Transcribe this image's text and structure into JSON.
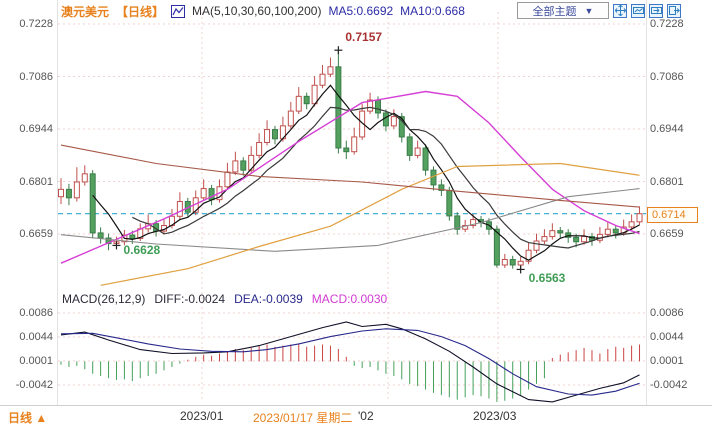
{
  "header": {
    "symbol": "澳元美元",
    "period": "【日线】",
    "ma_settings": "MA(5,10,30,60,100,200)",
    "ma5": "MA5:0.6692",
    "ma10": "MA10:0.668",
    "theme_selector": "全部主题",
    "dropdown_arrow": "▼"
  },
  "macd_header": {
    "label": "MACD(26,12,9)",
    "diff": "DIFF:-0.0024",
    "dea": "DEA:-0.0039",
    "macd": "MACD:0.0030"
  },
  "annotations": {
    "high": "0.7157",
    "low_left": "0.6628",
    "low_right": "0.6563",
    "last_price": "0.6714"
  },
  "time_axis": {
    "jan_label": "2023/01",
    "selected_date": "2023/01/17 星期二",
    "feb_label": "'02",
    "mar_label": "2023/03"
  },
  "status_bar": {
    "period": "日线",
    "trend_arrow": "▲"
  },
  "chart_data": {
    "type": "candlestick",
    "title": "澳元美元 日线 AUD/USD daily with MA overlays and MACD",
    "price_axis": {
      "labels": [
        "0.7228",
        "0.7086",
        "0.6944",
        "0.6801",
        "0.6659"
      ],
      "ticks": [
        0.7228,
        0.7086,
        0.6944,
        0.6801,
        0.6659
      ]
    },
    "macd_axis": {
      "labels": [
        "0.0086",
        "0.0044",
        "0.0001",
        "-0.0042"
      ],
      "ticks": [
        0.0086,
        0.0044,
        0.0001,
        -0.0042
      ]
    },
    "last_price": 0.6714,
    "colors": {
      "up": "#c0504d",
      "down_stroke": "#3a7d49",
      "down_fill": "#53a05f",
      "grid": "#f0d2d2",
      "frame": "#e3e3e3",
      "last_line": "#2ea8cc",
      "ma5": "#111111",
      "ma10": "#3a3a3a",
      "hist_up": "#cc4444",
      "hist_down": "#44a05a",
      "diff": "#101028",
      "dea": "#28288c",
      "marker": "#222222"
    },
    "candles": [
      [
        0.676,
        0.681,
        0.674,
        0.678
      ],
      [
        0.678,
        0.6795,
        0.6737,
        0.6757
      ],
      [
        0.6757,
        0.684,
        0.6747,
        0.68
      ],
      [
        0.68,
        0.6845,
        0.679,
        0.6822
      ],
      [
        0.6822,
        0.6832,
        0.6647,
        0.6662
      ],
      [
        0.6662,
        0.6677,
        0.6633,
        0.6648
      ],
      [
        0.6648,
        0.666,
        0.6615,
        0.6633
      ],
      [
        0.6633,
        0.6652,
        0.6628,
        0.6638
      ],
      [
        0.6638,
        0.667,
        0.6628,
        0.6656
      ],
      [
        0.6656,
        0.6668,
        0.6632,
        0.6647
      ],
      [
        0.6647,
        0.6688,
        0.664,
        0.6673
      ],
      [
        0.6673,
        0.6712,
        0.6663,
        0.6687
      ],
      [
        0.6687,
        0.6697,
        0.6652,
        0.6667
      ],
      [
        0.6667,
        0.6698,
        0.6658,
        0.6682
      ],
      [
        0.6682,
        0.6727,
        0.6674,
        0.6707
      ],
      [
        0.6707,
        0.6772,
        0.6699,
        0.6747
      ],
      [
        0.6747,
        0.6757,
        0.6703,
        0.6718
      ],
      [
        0.6718,
        0.6777,
        0.671,
        0.6757
      ],
      [
        0.6757,
        0.6807,
        0.6749,
        0.6782
      ],
      [
        0.6782,
        0.6792,
        0.6737,
        0.6752
      ],
      [
        0.6752,
        0.6807,
        0.6744,
        0.6787
      ],
      [
        0.6787,
        0.6852,
        0.6779,
        0.6827
      ],
      [
        0.6827,
        0.6882,
        0.6819,
        0.6857
      ],
      [
        0.6857,
        0.6867,
        0.6817,
        0.6832
      ],
      [
        0.6832,
        0.6897,
        0.6824,
        0.6872
      ],
      [
        0.6872,
        0.6932,
        0.6864,
        0.6907
      ],
      [
        0.6907,
        0.6967,
        0.6899,
        0.6942
      ],
      [
        0.6942,
        0.6952,
        0.6902,
        0.6917
      ],
      [
        0.6917,
        0.6977,
        0.6909,
        0.6952
      ],
      [
        0.6952,
        0.7017,
        0.6944,
        0.6992
      ],
      [
        0.6992,
        0.7057,
        0.6984,
        0.7032
      ],
      [
        0.7032,
        0.7042,
        0.6997,
        0.7012
      ],
      [
        0.7012,
        0.7087,
        0.7004,
        0.7062
      ],
      [
        0.7062,
        0.7117,
        0.7054,
        0.7092
      ],
      [
        0.7092,
        0.7137,
        0.7084,
        0.7112
      ],
      [
        0.7112,
        0.7157,
        0.6877,
        0.6892
      ],
      [
        0.6892,
        0.6912,
        0.6862,
        0.6882
      ],
      [
        0.6882,
        0.6947,
        0.6874,
        0.6922
      ],
      [
        0.6922,
        0.7012,
        0.6914,
        0.6992
      ],
      [
        0.6992,
        0.7042,
        0.6984,
        0.7022
      ],
      [
        0.7022,
        0.7032,
        0.6972,
        0.6987
      ],
      [
        0.6987,
        0.6997,
        0.6937,
        0.6952
      ],
      [
        0.6952,
        0.6997,
        0.6944,
        0.6977
      ],
      [
        0.6977,
        0.6987,
        0.6907,
        0.6922
      ],
      [
        0.6922,
        0.6932,
        0.6857,
        0.6872
      ],
      [
        0.6872,
        0.6912,
        0.6864,
        0.6892
      ],
      [
        0.6892,
        0.6902,
        0.6817,
        0.6832
      ],
      [
        0.6832,
        0.6842,
        0.6777,
        0.6792
      ],
      [
        0.6792,
        0.6807,
        0.6762,
        0.6777
      ],
      [
        0.6777,
        0.6787,
        0.6695,
        0.6708
      ],
      [
        0.6708,
        0.6718,
        0.6657,
        0.6672
      ],
      [
        0.6672,
        0.6697,
        0.6664,
        0.6682
      ],
      [
        0.6682,
        0.6713,
        0.6674,
        0.6698
      ],
      [
        0.6698,
        0.6708,
        0.6677,
        0.6692
      ],
      [
        0.6692,
        0.6702,
        0.6657,
        0.6672
      ],
      [
        0.6672,
        0.6682,
        0.6568,
        0.6575
      ],
      [
        0.6575,
        0.6605,
        0.6567,
        0.659
      ],
      [
        0.659,
        0.66,
        0.6565,
        0.6575
      ],
      [
        0.6575,
        0.6597,
        0.6563,
        0.6585
      ],
      [
        0.6585,
        0.6635,
        0.6577,
        0.6615
      ],
      [
        0.6615,
        0.666,
        0.6607,
        0.664
      ],
      [
        0.664,
        0.6672,
        0.6632,
        0.6652
      ],
      [
        0.6652,
        0.6688,
        0.6644,
        0.6668
      ],
      [
        0.6668,
        0.6678,
        0.6647,
        0.6662
      ],
      [
        0.6662,
        0.6672,
        0.6635,
        0.665
      ],
      [
        0.665,
        0.666,
        0.6623,
        0.6638
      ],
      [
        0.6638,
        0.6672,
        0.663,
        0.6652
      ],
      [
        0.6652,
        0.6662,
        0.6627,
        0.6642
      ],
      [
        0.6642,
        0.6678,
        0.6634,
        0.6658
      ],
      [
        0.6658,
        0.6692,
        0.665,
        0.6672
      ],
      [
        0.6672,
        0.6682,
        0.6647,
        0.6662
      ],
      [
        0.6662,
        0.6698,
        0.6654,
        0.6678
      ],
      [
        0.6678,
        0.6712,
        0.667,
        0.6692
      ],
      [
        0.6692,
        0.6734,
        0.6684,
        0.6714
      ]
    ],
    "markers": [
      {
        "idx": 35,
        "price": 0.7157,
        "kind": "high"
      },
      {
        "idx": 7,
        "price": 0.6628,
        "kind": "low"
      },
      {
        "idx": 58,
        "price": 0.6563,
        "kind": "low"
      }
    ],
    "ma_overlays": [
      {
        "name": "MA30",
        "color": "#d63fd6",
        "width": 1.4,
        "points": [
          [
            0,
            0.658
          ],
          [
            13,
            0.67
          ],
          [
            21,
            0.678
          ],
          [
            30,
            0.691
          ],
          [
            38,
            0.7015
          ],
          [
            46,
            0.7045
          ],
          [
            50,
            0.7032
          ],
          [
            54,
            0.696
          ],
          [
            58,
            0.6868
          ],
          [
            62,
            0.678
          ],
          [
            66,
            0.6722
          ],
          [
            70,
            0.6682
          ],
          [
            73,
            0.666
          ]
        ]
      },
      {
        "name": "MA60",
        "color": "#8a8a8a",
        "width": 1.1,
        "points": [
          [
            0,
            0.6657
          ],
          [
            12,
            0.6632
          ],
          [
            27,
            0.6612
          ],
          [
            40,
            0.6628
          ],
          [
            53,
            0.669
          ],
          [
            64,
            0.676
          ],
          [
            73,
            0.6782
          ]
        ]
      },
      {
        "name": "MA100",
        "color": "#e0a040",
        "width": 1.2,
        "points": [
          [
            5,
            0.652
          ],
          [
            16,
            0.6565
          ],
          [
            25,
            0.6625
          ],
          [
            34,
            0.668
          ],
          [
            43,
            0.678
          ],
          [
            50,
            0.6842
          ],
          [
            63,
            0.685
          ],
          [
            73,
            0.6818
          ]
        ]
      },
      {
        "name": "MA200",
        "color": "#a85848",
        "width": 1.1,
        "points": [
          [
            0,
            0.69
          ],
          [
            12,
            0.685
          ],
          [
            25,
            0.6815
          ],
          [
            38,
            0.68
          ],
          [
            50,
            0.6775
          ],
          [
            63,
            0.675
          ],
          [
            73,
            0.6732
          ]
        ]
      }
    ],
    "macd": {
      "hist": [
        -0.0006,
        -0.001,
        -0.0008,
        -0.0014,
        -0.0022,
        -0.0026,
        -0.003,
        -0.0033,
        -0.0032,
        -0.0035,
        -0.003,
        -0.0026,
        -0.0022,
        -0.0016,
        -0.001,
        -0.0004,
        0.0003,
        0.0008,
        0.0012,
        0.001,
        0.0014,
        0.0018,
        0.0022,
        0.002,
        0.0024,
        0.0028,
        0.003,
        0.0026,
        0.0028,
        0.003,
        0.0032,
        0.0026,
        0.0028,
        0.003,
        0.0028,
        0.0022,
        0.0008,
        -0.0008,
        -0.0012,
        -0.001,
        -0.0016,
        -0.0022,
        -0.0026,
        -0.0032,
        -0.004,
        -0.0044,
        -0.005,
        -0.0056,
        -0.006,
        -0.0064,
        -0.0068,
        -0.0064,
        -0.006,
        -0.0062,
        -0.0066,
        -0.0072,
        -0.007,
        -0.0066,
        -0.006,
        -0.005,
        -0.004,
        -0.003,
        0.0006,
        0.0012,
        0.0016,
        0.002,
        0.0024,
        0.002,
        0.0014,
        0.0022,
        0.0026,
        0.0024,
        0.0028,
        0.003
      ],
      "diff_line": [
        [
          0,
          0.0047
        ],
        [
          3,
          0.0052
        ],
        [
          6,
          0.0038
        ],
        [
          10,
          0.0021
        ],
        [
          14,
          0.0014
        ],
        [
          18,
          0.0015
        ],
        [
          21,
          0.0017
        ],
        [
          25,
          0.0028
        ],
        [
          29,
          0.0044
        ],
        [
          33,
          0.006
        ],
        [
          36,
          0.007
        ],
        [
          38,
          0.0062
        ],
        [
          41,
          0.0066
        ],
        [
          43,
          0.0058
        ],
        [
          46,
          0.004
        ],
        [
          49,
          0.0018
        ],
        [
          52,
          -0.001
        ],
        [
          55,
          -0.004
        ],
        [
          59,
          -0.0068
        ],
        [
          62,
          -0.0072
        ],
        [
          65,
          -0.006
        ],
        [
          68,
          -0.0048
        ],
        [
          71,
          -0.0038
        ],
        [
          73,
          -0.0024
        ]
      ],
      "dea_line": [
        [
          0,
          0.0049
        ],
        [
          4,
          0.005
        ],
        [
          7,
          0.0042
        ],
        [
          11,
          0.0031
        ],
        [
          15,
          0.0022
        ],
        [
          19,
          0.0018
        ],
        [
          23,
          0.0017
        ],
        [
          26,
          0.0021
        ],
        [
          30,
          0.0031
        ],
        [
          34,
          0.0044
        ],
        [
          38,
          0.0054
        ],
        [
          41,
          0.0058
        ],
        [
          45,
          0.0055
        ],
        [
          48,
          0.0044
        ],
        [
          51,
          0.0028
        ],
        [
          54,
          0.0005
        ],
        [
          57,
          -0.0022
        ],
        [
          60,
          -0.0045
        ],
        [
          64,
          -0.0058
        ],
        [
          67,
          -0.006
        ],
        [
          70,
          -0.0053
        ],
        [
          73,
          -0.0039
        ]
      ]
    }
  }
}
